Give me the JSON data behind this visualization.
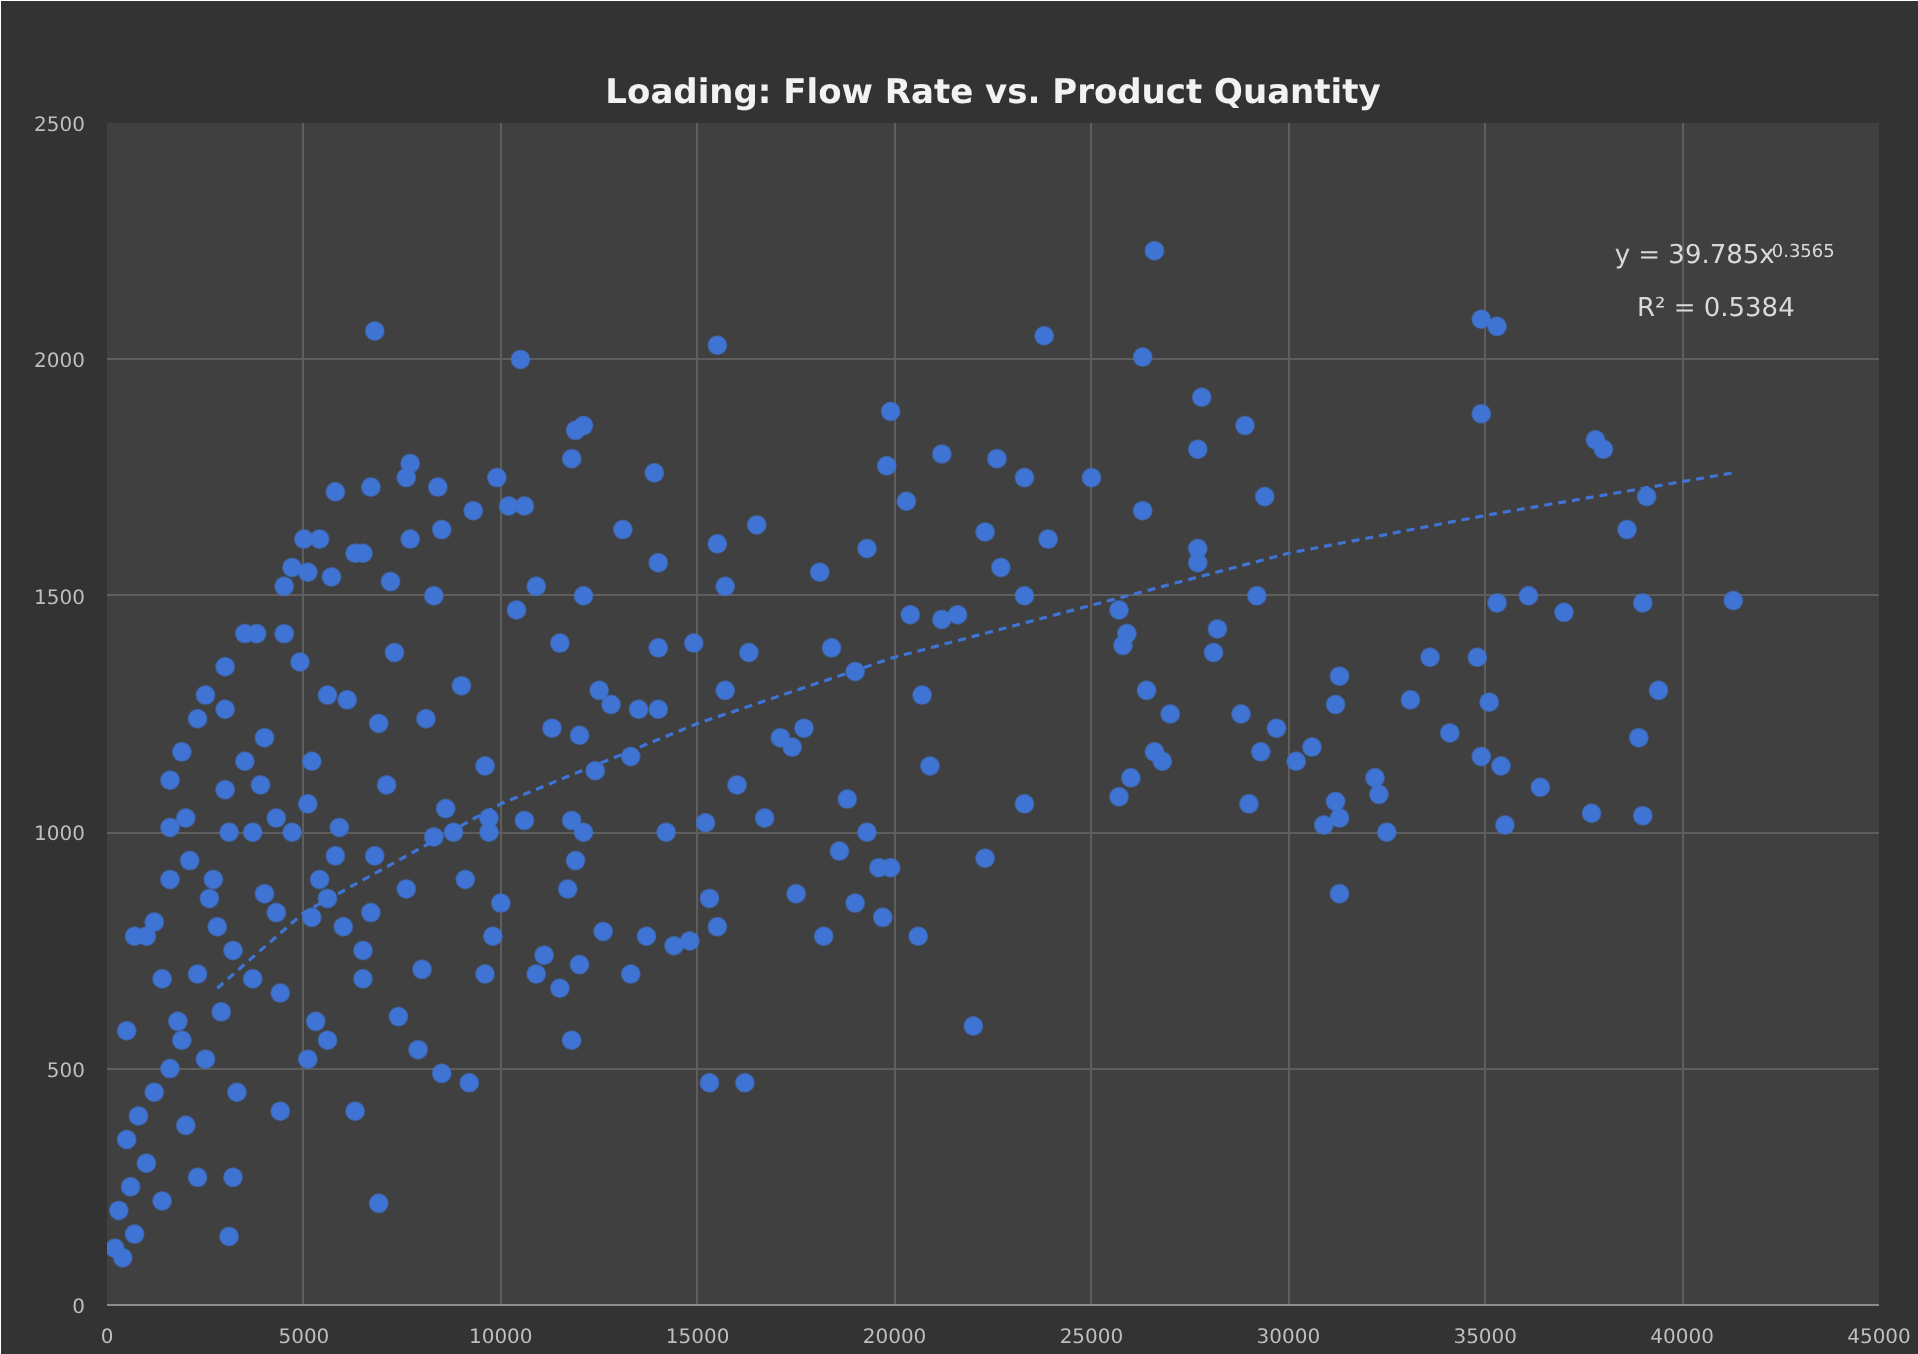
{
  "chart_data": {
    "type": "scatter",
    "title": "Loading: Flow Rate vs. Product Quantity",
    "xlim": [
      0,
      45000
    ],
    "ylim": [
      0,
      2500
    ],
    "xticks": [
      0,
      5000,
      10000,
      15000,
      20000,
      25000,
      30000,
      35000,
      40000,
      45000
    ],
    "yticks": [
      0,
      500,
      1000,
      1500,
      2000,
      2500
    ],
    "grid": true,
    "annotations": [
      "y = 39.785x$^{0.3565}$",
      "R² = 0.5384"
    ],
    "series": [
      {
        "color": "#3f74d4",
        "marker": "circle",
        "x": [
          6800,
          10500,
          15500,
          26600,
          23800,
          26300,
          34900,
          35300,
          34900,
          37800,
          38000,
          27800,
          28900,
          27700,
          29400,
          38600,
          39100,
          41300,
          39000,
          35300,
          36100,
          37000,
          25000,
          23300,
          22600,
          21200,
          19900,
          19800,
          20300,
          22300,
          23900,
          22700,
          23300,
          26300,
          25900,
          25700,
          25800,
          27700,
          27700,
          28200,
          28100,
          29200,
          28800,
          27000,
          26400,
          26600,
          26800,
          26000,
          25700,
          29000,
          29300,
          29700,
          30200,
          30600,
          31300,
          31200,
          30900,
          31200,
          31300,
          31300,
          32200,
          32300,
          32500,
          33100,
          33600,
          34100,
          34800,
          34900,
          35100,
          35400,
          35500,
          36400,
          37700,
          38900,
          39000,
          39400,
          23300,
          22300,
          22000,
          20600,
          20900,
          20700,
          21600,
          20400,
          21200,
          15300,
          16200,
          11800,
          18200,
          19700,
          19000,
          19300,
          19600,
          19900,
          18800,
          18600,
          17500,
          16700,
          17400,
          15200,
          14200,
          15500,
          15300,
          14400,
          14800,
          13700,
          13300,
          12600,
          12000,
          11100,
          11500,
          10900,
          10600,
          11800,
          11900,
          11700,
          12100,
          12000,
          11300,
          13300,
          15700,
          16300,
          17700,
          18400,
          19000,
          18100,
          19300,
          16500,
          15500,
          14000,
          13100,
          12100,
          11800,
          11900,
          12100,
          13900,
          10600,
          10200,
          9900,
          10900,
          10400,
          14900,
          14000,
          15700,
          17100,
          16000,
          13500,
          12800,
          12500,
          11500,
          12400,
          14000,
          6900,
          3100,
          3200,
          2300,
          400,
          200,
          700,
          1400,
          4400,
          6300,
          3300,
          2000,
          1000,
          600,
          300,
          500,
          800,
          1200,
          1600,
          1900,
          2500,
          2900,
          500,
          700,
          1200,
          1600,
          2100,
          2700,
          3100,
          3700,
          2000,
          1600,
          1600,
          1900,
          2300,
          2500,
          3000,
          3500,
          3800,
          4500,
          4700,
          5000,
          5400,
          5800,
          6500,
          6700,
          7600,
          7700,
          8400,
          9300,
          8500,
          7700,
          6300,
          5700,
          4500,
          3500,
          3900,
          4300,
          4700,
          5100,
          5200,
          5400,
          5600,
          5200,
          6000,
          6500,
          6500,
          7100,
          7600,
          8300,
          8800,
          9100,
          9700,
          9700,
          10000,
          9800,
          9600,
          8000,
          7400,
          7900,
          8500,
          9200,
          5600,
          5100,
          5300,
          4400,
          3200,
          3700,
          6900,
          8100,
          7300,
          5600,
          6100,
          4900,
          3000,
          9000,
          9600,
          8300,
          5900,
          6800,
          4300,
          2800,
          2300,
          1400,
          1800,
          2600,
          4000,
          5800,
          6700,
          7200,
          5100,
          4000,
          3000,
          8600,
          1000
        ],
        "values": [
          2060,
          2000,
          2030,
          2230,
          2050,
          2005,
          2085,
          2070,
          1885,
          1830,
          1810,
          1920,
          1860,
          1810,
          1710,
          1640,
          1710,
          1490,
          1485,
          1485,
          1500,
          1465,
          1750,
          1750,
          1790,
          1800,
          1890,
          1775,
          1700,
          1635,
          1620,
          1560,
          1500,
          1680,
          1420,
          1470,
          1395,
          1570,
          1600,
          1430,
          1380,
          1500,
          1250,
          1250,
          1300,
          1170,
          1150,
          1115,
          1075,
          1060,
          1170,
          1220,
          1150,
          1180,
          1330,
          1270,
          1015,
          1065,
          1030,
          870,
          1115,
          1080,
          1000,
          1280,
          1370,
          1210,
          1370,
          1160,
          1275,
          1140,
          1015,
          1095,
          1040,
          1200,
          1035,
          1300,
          1060,
          945,
          590,
          780,
          1140,
          1290,
          1460,
          1460,
          1450,
          470,
          470,
          560,
          780,
          820,
          850,
          1000,
          925,
          925,
          1070,
          960,
          870,
          1030,
          1180,
          1020,
          1000,
          800,
          860,
          760,
          770,
          780,
          700,
          790,
          720,
          740,
          670,
          700,
          1025,
          1025,
          940,
          880,
          1000,
          1205,
          1220,
          1160,
          1300,
          1380,
          1220,
          1390,
          1340,
          1550,
          1600,
          1650,
          1610,
          1570,
          1640,
          1500,
          1790,
          1850,
          1860,
          1760,
          1690,
          1690,
          1750,
          1520,
          1470,
          1400,
          1390,
          1520,
          1200,
          1100,
          1260,
          1270,
          1300,
          1400,
          1130,
          1260,
          215,
          145,
          270,
          270,
          100,
          120,
          150,
          220,
          410,
          410,
          450,
          380,
          300,
          250,
          200,
          350,
          400,
          450,
          500,
          560,
          520,
          620,
          580,
          780,
          810,
          900,
          940,
          900,
          1000,
          1000,
          1030,
          1010,
          1110,
          1170,
          1240,
          1290,
          1350,
          1420,
          1420,
          1420,
          1560,
          1620,
          1620,
          1720,
          1590,
          1730,
          1750,
          1780,
          1730,
          1680,
          1640,
          1620,
          1590,
          1540,
          1520,
          1150,
          1100,
          1030,
          1000,
          1060,
          1150,
          900,
          860,
          820,
          800,
          750,
          690,
          1100,
          880,
          990,
          1000,
          900,
          1000,
          1030,
          850,
          780,
          700,
          710,
          610,
          540,
          490,
          470,
          560,
          520,
          600,
          660,
          750,
          690,
          1230,
          1240,
          1380,
          1290,
          1280,
          1360,
          1260,
          1310,
          1140,
          1500,
          1010,
          950,
          830,
          800,
          700,
          690,
          600,
          860,
          870,
          950,
          830,
          1530,
          1550,
          1200,
          1090,
          1050,
          780
        ]
      },
      {
        "type": "line",
        "line_style": "dashed",
        "color": "#3f74d4",
        "x": [
          2800,
          5000,
          10000,
          15000,
          20000,
          25000,
          30000,
          35000,
          41300
        ],
        "values": [
          670,
          830,
          1060,
          1230,
          1370,
          1480,
          1590,
          1670,
          1760
        ]
      }
    ]
  }
}
